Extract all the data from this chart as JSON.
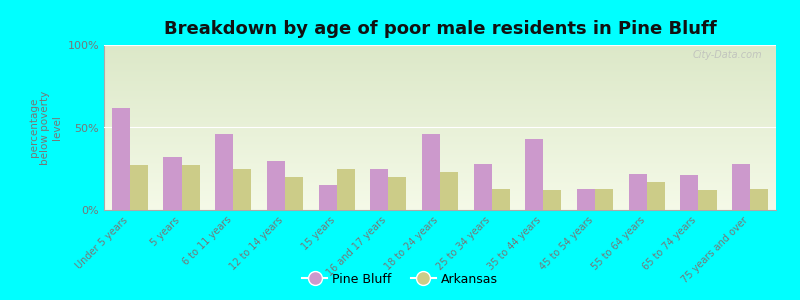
{
  "title": "Breakdown by age of poor male residents in Pine Bluff",
  "ylabel": "percentage\nbelow poverty\nlevel",
  "categories": [
    "Under 5 years",
    "5 years",
    "6 to 11 years",
    "12 to 14 years",
    "15 years",
    "16 and 17 years",
    "18 to 24 years",
    "25 to 34 years",
    "35 to 44 years",
    "45 to 54 years",
    "55 to 64 years",
    "65 to 74 years",
    "75 years and over"
  ],
  "pine_bluff": [
    62,
    32,
    46,
    30,
    15,
    25,
    46,
    28,
    43,
    13,
    22,
    21,
    28
  ],
  "arkansas": [
    27,
    27,
    25,
    20,
    25,
    20,
    23,
    13,
    12,
    13,
    17,
    12,
    13
  ],
  "pine_bluff_color": "#cc99cc",
  "arkansas_color": "#cccc88",
  "background_color": "#00ffff",
  "plot_bg_top": "#dce8c8",
  "plot_bg_bottom": "#f5fae8",
  "ylim": [
    0,
    100
  ],
  "yticks": [
    0,
    50,
    100
  ],
  "ytick_labels": [
    "0%",
    "50%",
    "100%"
  ],
  "bar_width": 0.35,
  "title_fontsize": 13,
  "legend_labels": [
    "Pine Bluff",
    "Arkansas"
  ],
  "watermark": "City-Data.com"
}
